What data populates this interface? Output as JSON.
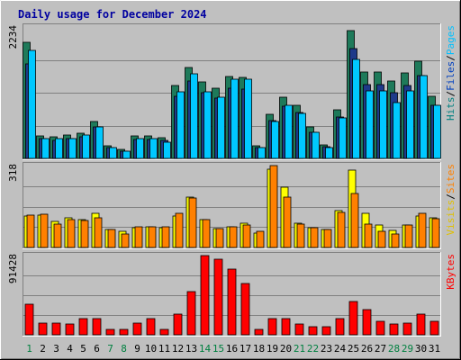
{
  "chart_data": {
    "type": "bar",
    "title": "Daily usage for December 2024",
    "categories": [
      "1",
      "2",
      "3",
      "4",
      "5",
      "6",
      "7",
      "8",
      "9",
      "10",
      "11",
      "12",
      "13",
      "14",
      "15",
      "16",
      "17",
      "18",
      "19",
      "20",
      "21",
      "22",
      "23",
      "24",
      "25",
      "26",
      "27",
      "28",
      "29",
      "30",
      "31"
    ],
    "weekend_days": [
      "1",
      "7",
      "8",
      "14",
      "15",
      "21",
      "22",
      "28",
      "29"
    ],
    "panels": [
      {
        "id": "pages-files-hits",
        "ymax_label": "2234",
        "ylim": [
          0,
          2234
        ],
        "legend": [
          {
            "text": "Pages",
            "color": "#00c0ff"
          },
          {
            "text": "/",
            "color": "#000000"
          },
          {
            "text": "Files",
            "color": "#0040c0"
          },
          {
            "text": "/",
            "color": "#000000"
          },
          {
            "text": "Hits",
            "color": "#008080"
          }
        ],
        "series": [
          {
            "name": "Hits",
            "color": "#1e7a5a",
            "values": [
              1975,
              387,
              364,
              398,
              433,
              631,
              216,
              148,
              375,
              375,
              350,
              1239,
              1542,
              1307,
              1190,
              1392,
              1375,
              209,
              748,
              1044,
              909,
              531,
              229,
              829,
              2175,
              1466,
              1466,
              1311,
              1449,
              1653,
              1051
            ]
          },
          {
            "name": "Files",
            "color": "#1e3a8a",
            "values": [
              1600,
              330,
              310,
              340,
              370,
              540,
              180,
              120,
              320,
              320,
              300,
              1060,
              1320,
              1120,
              1020,
              1190,
              1180,
              180,
              640,
              890,
              780,
              450,
              195,
              710,
              1860,
              1250,
              1250,
              1120,
              1240,
              1410,
              900
            ]
          },
          {
            "name": "Pages",
            "color": "#00c8ff",
            "values": [
              1841,
              342,
              342,
              342,
              401,
              529,
              180,
              123,
              342,
              342,
              282,
              1129,
              1441,
              1129,
              1047,
              1346,
              1346,
              180,
              620,
              901,
              764,
              443,
              180,
              695,
              1686,
              1146,
              1146,
              944,
              1145,
              1414,
              902
            ]
          }
        ]
      },
      {
        "id": "visits-sites",
        "ymax_label": "318",
        "ylim": [
          0,
          318
        ],
        "legend": [
          {
            "text": "Sites",
            "color": "#ff8000"
          },
          {
            "text": "/",
            "color": "#000000"
          },
          {
            "text": "Visits",
            "color": "#e0c000"
          }
        ],
        "series": [
          {
            "name": "Visits",
            "color": "#ffff00",
            "values": [
              121,
              127,
              102,
              115,
              108,
              133,
              70,
              62,
              78,
              82,
              78,
              121,
              196,
              108,
              74,
              80,
              95,
              55,
              304,
              234,
              95,
              78,
              70,
              143,
              301,
              133,
              86,
              66,
              86,
              121,
              114
            ]
          },
          {
            "name": "Sites",
            "color": "#ff8000",
            "values": [
              127,
              130,
              90,
              108,
              106,
              117,
              70,
              52,
              82,
              82,
              82,
              133,
              191,
              108,
              74,
              82,
              86,
              62,
              318,
              195,
              90,
              78,
              70,
              138,
              210,
              90,
              62,
              52,
              86,
              133,
              112
            ]
          }
        ]
      },
      {
        "id": "kbytes",
        "ymax_label": "91428",
        "ylim": [
          0,
          91428
        ],
        "legend": [
          {
            "text": "KBytes",
            "color": "#ff0000"
          }
        ],
        "series": [
          {
            "name": "KBytes",
            "color": "#ff0000",
            "values": [
              35051,
              13714,
              13714,
              12190,
              18286,
              18286,
              6095,
              6095,
              13714,
              18286,
              6095,
              24381,
              50285,
              91428,
              86857,
              76190,
              59428,
              6095,
              18286,
              18286,
              12190,
              9142,
              9142,
              18286,
              38095,
              28952,
              15238,
              12190,
              13714,
              24381,
              15238
            ]
          }
        ]
      }
    ]
  }
}
